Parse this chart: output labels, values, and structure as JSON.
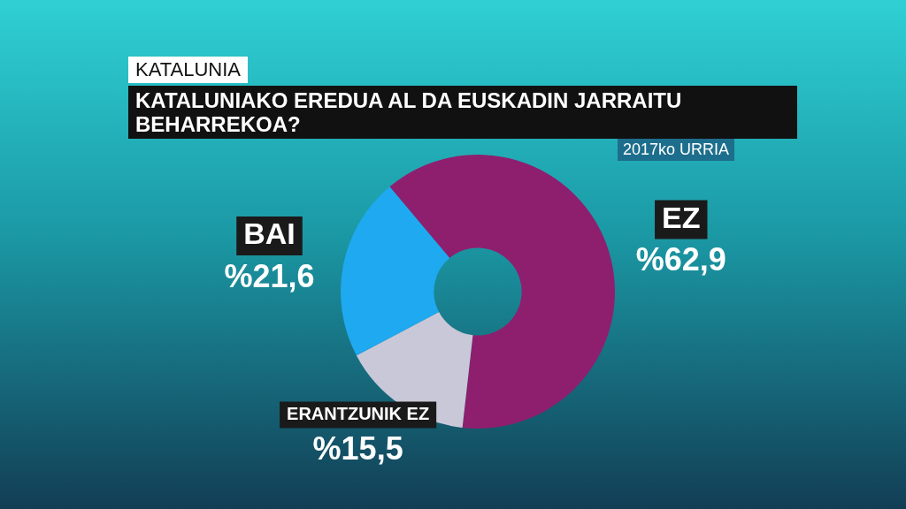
{
  "chart_data": {
    "type": "donut",
    "subtitle": "KATALUNIA",
    "title": "KATALUNIAKO EREDUA AL DA EUSKADIN JARRAITU BEHARREKOA?",
    "annotations": [
      "2017ko URRIA"
    ],
    "categories": [
      "EZ",
      "ERANTZUNIK EZ",
      "BAI"
    ],
    "values": [
      62.9,
      15.5,
      21.6
    ],
    "colors": [
      "#8e1f6e",
      "#c9c8d8",
      "#1ea9f0"
    ],
    "value_labels": [
      "%62,9",
      "%15,5",
      "%21,6"
    ],
    "legend": false
  }
}
